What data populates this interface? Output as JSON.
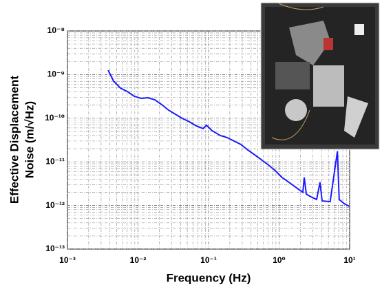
{
  "chart_data": {
    "type": "line",
    "xlabel": "Frequency (Hz)",
    "ylabel": [
      "Effective Displacement",
      "Noise (m/√Hz)"
    ],
    "xlog": true,
    "ylog": true,
    "grid": true,
    "xlim": [
      0.001,
      10
    ],
    "ylim": [
      1e-13,
      1e-08
    ],
    "xticks": [
      {
        "value": 0.001,
        "label": "10⁻³"
      },
      {
        "value": 0.01,
        "label": "10⁻²"
      },
      {
        "value": 0.1,
        "label": "10⁻¹"
      },
      {
        "value": 1,
        "label": "10⁰"
      },
      {
        "value": 10,
        "label": "10¹"
      }
    ],
    "yticks": [
      {
        "value": 1e-13,
        "label": "10⁻¹³"
      },
      {
        "value": 1e-12,
        "label": "10⁻¹²"
      },
      {
        "value": 1e-11,
        "label": "10⁻¹¹"
      },
      {
        "value": 1e-10,
        "label": "10⁻¹⁰"
      },
      {
        "value": 1e-09,
        "label": "10⁻⁹"
      },
      {
        "value": 1e-08,
        "label": "10⁻⁸"
      }
    ],
    "series": [
      {
        "color": "#1a1aff",
        "x": [
          0.00377,
          0.00451,
          0.00564,
          0.00706,
          0.00884,
          0.0111,
          0.0138,
          0.0173,
          0.0217,
          0.0272,
          0.034,
          0.0426,
          0.0533,
          0.0668,
          0.0836,
          0.0935,
          0.112,
          0.147,
          0.183,
          0.23,
          0.288,
          0.36,
          0.45,
          0.56,
          0.71,
          0.88,
          1.1,
          1.38,
          1.73,
          2.17,
          2.27,
          2.43,
          2.72,
          3.4,
          3.8,
          4.07,
          5.3,
          6.7,
          7.1,
          8.4,
          10
        ],
        "values": [
          1.26e-09,
          7.06e-10,
          4.91e-10,
          4.09e-10,
          3.18e-10,
          2.85e-10,
          2.95e-10,
          2.65e-10,
          2.05e-10,
          1.53e-10,
          1.23e-10,
          9.9e-11,
          8.3e-11,
          6.7e-11,
          5.8e-11,
          6.9e-11,
          5.2e-11,
          4e-11,
          3.6e-11,
          3e-11,
          2.5e-11,
          1.87e-11,
          1.45e-11,
          1.12e-11,
          8.4e-12,
          6.3e-12,
          4.4e-12,
          3.4e-12,
          2.6e-12,
          2e-12,
          4.4e-12,
          1.83e-12,
          1.63e-12,
          1.37e-12,
          3.4e-12,
          1.27e-12,
          1.22e-12,
          1.74e-11,
          1.37e-12,
          1.1e-12,
          9.5e-13
        ]
      }
    ]
  }
}
